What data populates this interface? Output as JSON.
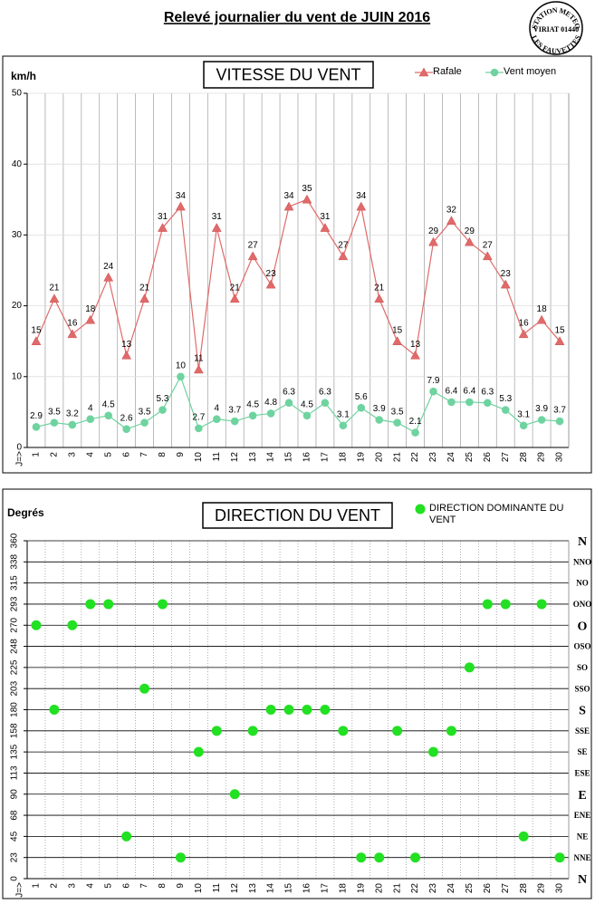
{
  "title": "Relevé journalier du vent de JUIN 2016",
  "logo": [
    "STATION METEO",
    "VIRIAT 01440",
    "LES FAUVETTES"
  ],
  "chart_data": [
    {
      "type": "line",
      "title": "VITESSE DU VENT",
      "y_label": "km/h",
      "x_label": "J=>",
      "categories": [
        "1",
        "2",
        "3",
        "4",
        "5",
        "6",
        "7",
        "8",
        "9",
        "10",
        "11",
        "12",
        "13",
        "14",
        "15",
        "16",
        "17",
        "18",
        "19",
        "20",
        "21",
        "22",
        "23",
        "24",
        "25",
        "26",
        "27",
        "28",
        "29",
        "30"
      ],
      "series": [
        {
          "name": "Rafale",
          "color": "#e06a6a",
          "marker": "triangle",
          "values": [
            15,
            21,
            16,
            18,
            24,
            13,
            21,
            31,
            34,
            11,
            31,
            21,
            27,
            23,
            34,
            35,
            31,
            27,
            34,
            21,
            15,
            13,
            29,
            32,
            29,
            27,
            23,
            16,
            18,
            15
          ]
        },
        {
          "name": "Vent moyen",
          "color": "#6fd3a0",
          "marker": "circle",
          "values": [
            2.9,
            3.5,
            3.2,
            4,
            4.5,
            2.6,
            3.5,
            5.3,
            10,
            2.7,
            4,
            3.7,
            4.5,
            4.8,
            6.3,
            4.5,
            6.3,
            3.1,
            5.6,
            3.9,
            3.5,
            2.1,
            7.9,
            6.4,
            6.4,
            6.3,
            5.3,
            3.1,
            3.9,
            3.7
          ]
        }
      ],
      "ylim": [
        0,
        50
      ],
      "yticks": [
        0,
        10,
        20,
        30,
        40,
        50
      ],
      "grid": true,
      "legend": "top-right"
    },
    {
      "type": "scatter",
      "title": "DIRECTION DU VENT",
      "y_label": "Degrés",
      "x_label": "J=>",
      "categories": [
        "1",
        "2",
        "3",
        "4",
        "5",
        "6",
        "7",
        "8",
        "9",
        "10",
        "11",
        "12",
        "13",
        "14",
        "15",
        "16",
        "17",
        "18",
        "19",
        "20",
        "21",
        "22",
        "23",
        "24",
        "25",
        "26",
        "27",
        "28",
        "29",
        "30"
      ],
      "series": [
        {
          "name": "DIRECTION DOMINANTE DU VENT",
          "color": "#22e022",
          "marker": "circle",
          "values": [
            270,
            180,
            270,
            292.5,
            292.5,
            45,
            202.5,
            292.5,
            22.5,
            135,
            157.5,
            90,
            157.5,
            180,
            180,
            180,
            180,
            157.5,
            22.5,
            22.5,
            157.5,
            22.5,
            135,
            157.5,
            225,
            292.5,
            292.5,
            45,
            292.5,
            22.5
          ]
        }
      ],
      "ylim": [
        0,
        360
      ],
      "yticks": [
        0,
        {
          "value": 22.5,
          "label": "23"
        },
        45,
        {
          "value": 67.5,
          "label": "68"
        },
        90,
        {
          "value": 112.5,
          "label": "113"
        },
        135,
        {
          "value": 157.5,
          "label": "158"
        },
        180,
        {
          "value": 202.5,
          "label": "203"
        },
        225,
        {
          "value": 247.5,
          "label": "248"
        },
        270,
        {
          "value": 292.5,
          "label": "293"
        },
        315,
        {
          "value": 337.5,
          "label": "338"
        },
        360
      ],
      "y2lim": [
        0,
        360
      ],
      "y2ticks": [
        {
          "value": 0,
          "label": "N"
        },
        {
          "value": 22.5,
          "label": "NNE"
        },
        {
          "value": 45,
          "label": "NE"
        },
        {
          "value": 67.5,
          "label": "ENE"
        },
        {
          "value": 90,
          "label": "E"
        },
        {
          "value": 112.5,
          "label": "ESE"
        },
        {
          "value": 135,
          "label": "SE"
        },
        {
          "value": 157.5,
          "label": "SSE"
        },
        {
          "value": 180,
          "label": "S"
        },
        {
          "value": 202.5,
          "label": "SSO"
        },
        {
          "value": 225,
          "label": "SO"
        },
        {
          "value": 247.5,
          "label": "OSO"
        },
        {
          "value": 270,
          "label": "O"
        },
        {
          "value": 292.5,
          "label": "ONO"
        },
        {
          "value": 315,
          "label": "NO"
        },
        {
          "value": 337.5,
          "label": "NNO"
        },
        {
          "value": 360,
          "label": "N"
        }
      ],
      "grid": true,
      "legend": "top-right"
    }
  ]
}
